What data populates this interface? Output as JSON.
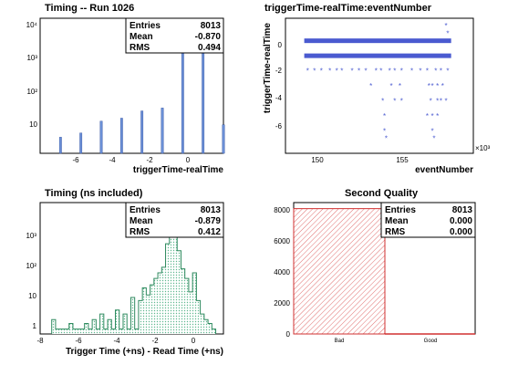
{
  "chart_data": [
    {
      "type": "bar",
      "title": "Timing -- Run 1026",
      "xlabel": "triggerTime-realTime",
      "ylabel": "",
      "log_y": true,
      "xlim": [
        -8,
        1
      ],
      "ylim": [
        1,
        10000
      ],
      "x_ticks": [
        "-6",
        "-4",
        "-2",
        "0"
      ],
      "y_ticks": [
        "10",
        "10²",
        "10³",
        "10⁴"
      ],
      "x": [
        -7,
        -6,
        -5,
        -4,
        -3,
        -2,
        -1,
        0,
        1
      ],
      "values": [
        3,
        4,
        9,
        11,
        18,
        22,
        6000,
        1400,
        7
      ],
      "stats": {
        "Entries": "8013",
        "Mean": "-0.870",
        "RMS": "0.494"
      },
      "color": "#6a8fd6"
    },
    {
      "type": "scatter",
      "title": "triggerTime-realTime:eventNumber",
      "xlabel": "eventNumber",
      "ylabel": "triggerTime-realTime",
      "x_multiplier": "×10³",
      "xlim": [
        148,
        159
      ],
      "ylim": [
        -7.5,
        1.5
      ],
      "x_ticks": [
        "150",
        "155"
      ],
      "y_ticks": [
        "-6",
        "-4",
        "-2",
        "0"
      ],
      "color": "#4a5ad0",
      "bands": [
        {
          "y": 0,
          "x_from": 149.1,
          "x_to": 157.7
        },
        {
          "y": -1,
          "x_from": 149.1,
          "x_to": 157.7
        }
      ],
      "points": [
        [
          157.4,
          1
        ],
        [
          157.5,
          0.5
        ],
        [
          149.3,
          -2
        ],
        [
          149.7,
          -2
        ],
        [
          150.1,
          -2
        ],
        [
          150.6,
          -2
        ],
        [
          151.0,
          -2
        ],
        [
          151.3,
          -2
        ],
        [
          151.9,
          -2
        ],
        [
          152.3,
          -2
        ],
        [
          152.7,
          -2
        ],
        [
          153.3,
          -2
        ],
        [
          153.6,
          -2
        ],
        [
          154.1,
          -2
        ],
        [
          154.4,
          -2
        ],
        [
          154.8,
          -2
        ],
        [
          155.4,
          -2
        ],
        [
          155.9,
          -2
        ],
        [
          156.3,
          -2
        ],
        [
          156.8,
          -2
        ],
        [
          157.1,
          -2
        ],
        [
          157.5,
          -2
        ],
        [
          153.0,
          -3
        ],
        [
          154.2,
          -3
        ],
        [
          154.7,
          -3
        ],
        [
          156.4,
          -3
        ],
        [
          156.6,
          -3
        ],
        [
          156.9,
          -3
        ],
        [
          157.2,
          -3
        ],
        [
          153.7,
          -4
        ],
        [
          154.4,
          -4
        ],
        [
          154.8,
          -4
        ],
        [
          156.5,
          -4
        ],
        [
          156.9,
          -4
        ],
        [
          157.1,
          -4
        ],
        [
          157.4,
          -4
        ],
        [
          153.8,
          -5
        ],
        [
          156.3,
          -5
        ],
        [
          156.6,
          -5
        ],
        [
          156.9,
          -5
        ],
        [
          153.8,
          -6
        ],
        [
          156.6,
          -6
        ],
        [
          153.9,
          -6.5
        ],
        [
          156.7,
          -6.5
        ]
      ]
    },
    {
      "type": "area",
      "title": "Timing (ns included)",
      "xlabel": "Trigger Time (+ns) - Read Time (+ns)",
      "ylabel": "",
      "log_y": true,
      "xlim": [
        -8,
        1.5
      ],
      "ylim": [
        0.7,
        10000
      ],
      "x_ticks": [
        "-8",
        "-6",
        "-4",
        "-2",
        "0"
      ],
      "y_ticks": [
        "1",
        "10",
        "10²",
        "10³"
      ],
      "x": [
        -7.3,
        -6.4,
        -5.6,
        -5.2,
        -4.8,
        -4.4,
        -4.0,
        -3.6,
        -3.2,
        -2.8,
        -2.6,
        -2.4,
        -2.2,
        -2.0,
        -1.8,
        -1.6,
        -1.4,
        -1.2,
        -1.0,
        -0.8,
        -0.6,
        -0.4,
        -0.2,
        0.0,
        0.2,
        0.4,
        0.6,
        0.8,
        1.0
      ],
      "values": [
        2,
        1.5,
        1.5,
        2,
        3,
        2,
        4,
        3,
        10,
        8,
        20,
        12,
        25,
        40,
        60,
        90,
        500,
        1500,
        900,
        300,
        80,
        40,
        15,
        60,
        8,
        3,
        2,
        1.5,
        1
      ],
      "stats": {
        "Entries": "8013",
        "Mean": "-0.879",
        "RMS": "0.412"
      },
      "color": "#3aa070"
    },
    {
      "type": "bar",
      "title": "Second Quality",
      "xlabel": "",
      "ylabel": "",
      "ylim": [
        0,
        8400
      ],
      "y_ticks": [
        "0",
        "2000",
        "4000",
        "6000",
        "8000"
      ],
      "categories": [
        "Bad",
        "Good"
      ],
      "values": [
        8013,
        0
      ],
      "stats": {
        "Entries": "8013",
        "Mean": "0.000",
        "RMS": "0.000"
      },
      "color": "#d03030"
    }
  ]
}
